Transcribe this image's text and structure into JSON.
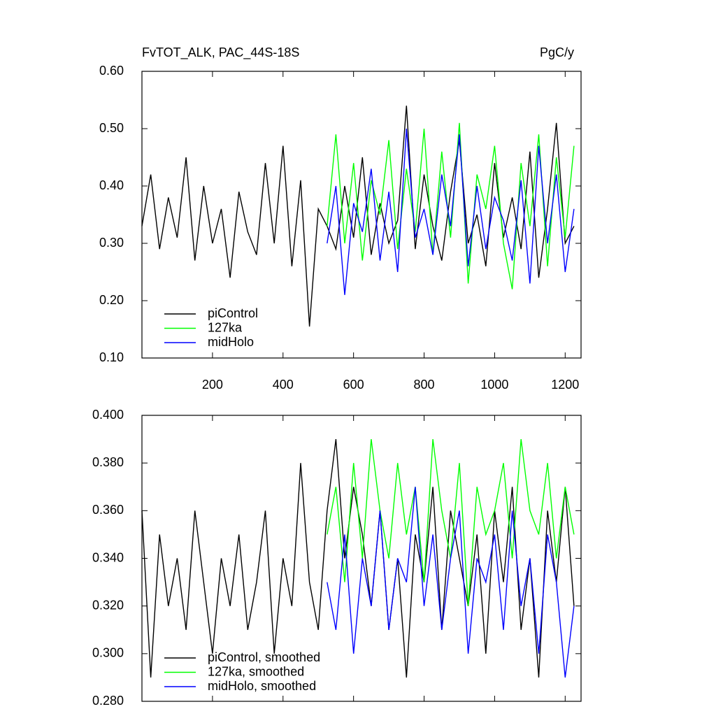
{
  "chart_data": [
    {
      "type": "line",
      "title": "FvTOT_ALK, PAC_44S-18S",
      "units": "PgC/y",
      "xlim": [
        0,
        1245
      ],
      "xticks": [
        200,
        400,
        600,
        800,
        1000,
        1200
      ],
      "x_tick_labels": true,
      "ylim": [
        0.1,
        0.6
      ],
      "yticks": [
        {
          "value": 0.1,
          "label": "0.10"
        },
        {
          "value": 0.2,
          "label": "0.20"
        },
        {
          "value": 0.3,
          "label": "0.30"
        },
        {
          "value": 0.4,
          "label": "0.40"
        },
        {
          "value": 0.5,
          "label": "0.50"
        },
        {
          "value": 0.6,
          "label": "0.60"
        }
      ],
      "series": [
        {
          "name": "piControl",
          "color": "#000000",
          "x": [
            0,
            25,
            50,
            75,
            100,
            125,
            150,
            175,
            200,
            225,
            250,
            275,
            300,
            325,
            350,
            375,
            400,
            425,
            450,
            475,
            500,
            525,
            550,
            575,
            600,
            625,
            650,
            675,
            700,
            725,
            750,
            775,
            800,
            825,
            850,
            875,
            900,
            925,
            950,
            975,
            1000,
            1025,
            1050,
            1075,
            1100,
            1125,
            1150,
            1175,
            1200,
            1225
          ],
          "values": [
            0.33,
            0.42,
            0.29,
            0.38,
            0.31,
            0.45,
            0.27,
            0.4,
            0.3,
            0.36,
            0.24,
            0.39,
            0.32,
            0.28,
            0.44,
            0.3,
            0.47,
            0.26,
            0.41,
            0.155,
            0.36,
            0.33,
            0.29,
            0.4,
            0.31,
            0.45,
            0.28,
            0.37,
            0.3,
            0.34,
            0.54,
            0.29,
            0.42,
            0.33,
            0.27,
            0.39,
            0.48,
            0.3,
            0.35,
            0.26,
            0.44,
            0.31,
            0.38,
            0.29,
            0.46,
            0.24,
            0.36,
            0.51,
            0.3,
            0.33
          ]
        },
        {
          "name": "127ka",
          "color": "#00ff00",
          "x": [
            525,
            550,
            575,
            600,
            625,
            650,
            675,
            700,
            725,
            750,
            775,
            800,
            825,
            850,
            875,
            900,
            925,
            950,
            975,
            1000,
            1025,
            1050,
            1075,
            1100,
            1125,
            1150,
            1175,
            1200,
            1225
          ],
          "values": [
            0.33,
            0.49,
            0.3,
            0.44,
            0.27,
            0.41,
            0.35,
            0.48,
            0.29,
            0.43,
            0.32,
            0.5,
            0.28,
            0.46,
            0.31,
            0.51,
            0.23,
            0.42,
            0.36,
            0.47,
            0.3,
            0.22,
            0.44,
            0.33,
            0.49,
            0.26,
            0.45,
            0.31,
            0.47
          ]
        },
        {
          "name": "midHolo",
          "color": "#0000ff",
          "x": [
            525,
            550,
            575,
            600,
            625,
            650,
            675,
            700,
            725,
            750,
            775,
            800,
            825,
            850,
            875,
            900,
            925,
            950,
            975,
            1000,
            1025,
            1050,
            1075,
            1100,
            1125,
            1150,
            1175,
            1200,
            1225
          ],
          "values": [
            0.3,
            0.4,
            0.21,
            0.37,
            0.32,
            0.43,
            0.27,
            0.39,
            0.25,
            0.5,
            0.31,
            0.36,
            0.28,
            0.42,
            0.33,
            0.49,
            0.26,
            0.4,
            0.29,
            0.38,
            0.34,
            0.27,
            0.41,
            0.23,
            0.47,
            0.3,
            0.42,
            0.25,
            0.36
          ]
        }
      ]
    },
    {
      "type": "line",
      "xlim": [
        0,
        1245
      ],
      "xticks": [
        200,
        400,
        600,
        800,
        1000,
        1200
      ],
      "x_tick_labels": false,
      "ylim": [
        0.28,
        0.4
      ],
      "yticks": [
        {
          "value": 0.28,
          "label": "0.280"
        },
        {
          "value": 0.3,
          "label": "0.300"
        },
        {
          "value": 0.32,
          "label": "0.320"
        },
        {
          "value": 0.34,
          "label": "0.340"
        },
        {
          "value": 0.36,
          "label": "0.360"
        },
        {
          "value": 0.38,
          "label": "0.380"
        },
        {
          "value": 0.4,
          "label": "0.400"
        }
      ],
      "series": [
        {
          "name": "piControl, smoothed",
          "color": "#000000",
          "x": [
            0,
            25,
            50,
            75,
            100,
            125,
            150,
            175,
            200,
            225,
            250,
            275,
            300,
            325,
            350,
            375,
            400,
            425,
            450,
            475,
            500,
            525,
            550,
            575,
            600,
            625,
            650,
            675,
            700,
            725,
            750,
            775,
            800,
            825,
            850,
            875,
            900,
            925,
            950,
            975,
            1000,
            1025,
            1050,
            1075,
            1100,
            1125,
            1150,
            1175,
            1200,
            1225
          ],
          "values": [
            0.36,
            0.29,
            0.35,
            0.32,
            0.34,
            0.31,
            0.36,
            0.33,
            0.3,
            0.34,
            0.32,
            0.35,
            0.31,
            0.33,
            0.36,
            0.3,
            0.34,
            0.32,
            0.38,
            0.33,
            0.31,
            0.36,
            0.39,
            0.34,
            0.37,
            0.35,
            0.32,
            0.36,
            0.31,
            0.34,
            0.29,
            0.35,
            0.33,
            0.37,
            0.31,
            0.36,
            0.34,
            0.32,
            0.35,
            0.3,
            0.36,
            0.33,
            0.37,
            0.31,
            0.34,
            0.29,
            0.36,
            0.33,
            0.37,
            0.32
          ]
        },
        {
          "name": "127ka, smoothed",
          "color": "#00ff00",
          "x": [
            525,
            550,
            575,
            600,
            625,
            650,
            675,
            700,
            725,
            750,
            775,
            800,
            825,
            850,
            875,
            900,
            925,
            950,
            975,
            1000,
            1025,
            1050,
            1075,
            1100,
            1125,
            1150,
            1175,
            1200,
            1225
          ],
          "values": [
            0.35,
            0.37,
            0.33,
            0.38,
            0.34,
            0.39,
            0.36,
            0.34,
            0.38,
            0.35,
            0.37,
            0.33,
            0.39,
            0.36,
            0.34,
            0.38,
            0.32,
            0.37,
            0.35,
            0.36,
            0.38,
            0.34,
            0.39,
            0.36,
            0.35,
            0.38,
            0.34,
            0.37,
            0.35
          ]
        },
        {
          "name": "midHolo, smoothed",
          "color": "#0000ff",
          "x": [
            525,
            550,
            575,
            600,
            625,
            650,
            675,
            700,
            725,
            750,
            775,
            800,
            825,
            850,
            875,
            900,
            925,
            950,
            975,
            1000,
            1025,
            1050,
            1075,
            1100,
            1125,
            1150,
            1175,
            1200,
            1225
          ],
          "values": [
            0.33,
            0.31,
            0.35,
            0.3,
            0.34,
            0.32,
            0.36,
            0.31,
            0.34,
            0.33,
            0.37,
            0.32,
            0.35,
            0.31,
            0.34,
            0.36,
            0.3,
            0.34,
            0.33,
            0.35,
            0.31,
            0.36,
            0.32,
            0.34,
            0.3,
            0.35,
            0.33,
            0.29,
            0.32
          ]
        }
      ]
    }
  ]
}
